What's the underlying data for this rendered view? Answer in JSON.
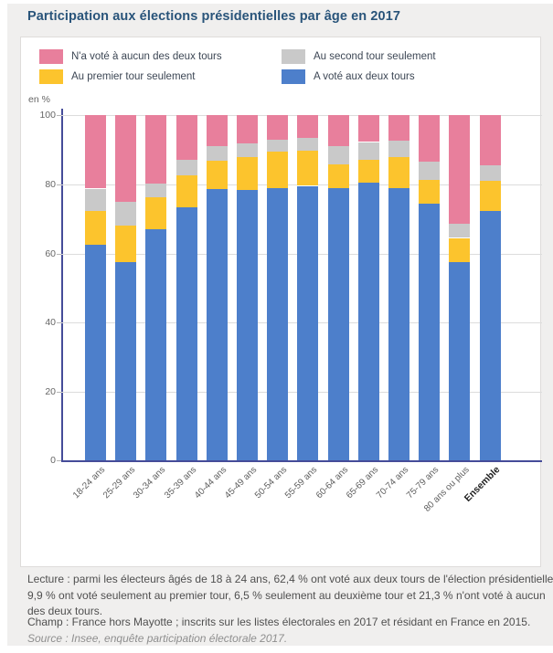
{
  "page": {
    "title": "Participation aux élections présidentielles par âge en 2017"
  },
  "legend": {
    "items": [
      {
        "label": "N'a voté à aucun des deux tours",
        "color": "#e87f9c"
      },
      {
        "label": "Au premier tour seulement",
        "color": "#fcc42d"
      },
      {
        "label": "Au second tour seulement",
        "color": "#c9c9c9"
      },
      {
        "label": "A voté aux deux tours",
        "color": "#4d7fcb"
      }
    ]
  },
  "chart_data": {
    "type": "bar",
    "stacked": true,
    "title": "Participation aux élections présidentielles par âge en 2017",
    "unit_label": "en %",
    "xlabel": "",
    "ylabel": "en %",
    "ylim": [
      0,
      100
    ],
    "yticks": [
      0,
      20,
      40,
      60,
      80,
      100
    ],
    "grid": true,
    "legend_position": "top",
    "categories": [
      "18-24 ans",
      "25-29 ans",
      "30-34 ans",
      "35-39 ans",
      "40-44 ans",
      "45-49 ans",
      "50-54 ans",
      "55-59 ans",
      "60-64 ans",
      "65-69 ans",
      "70-74 ans",
      "75-79 ans",
      "80 ans ou plus",
      "Ensemble"
    ],
    "highlight_category": "Ensemble",
    "series": [
      {
        "name": "A voté aux deux tours",
        "color": "#4d7fcb",
        "values": [
          62.4,
          57.5,
          67.0,
          73.4,
          78.6,
          78.3,
          78.9,
          79.6,
          79.0,
          80.4,
          78.9,
          74.4,
          57.4,
          72.2
        ]
      },
      {
        "name": "Au premier tour seulement",
        "color": "#fcc42d",
        "values": [
          9.9,
          10.5,
          9.2,
          9.2,
          8.2,
          9.6,
          10.6,
          10.3,
          6.9,
          6.8,
          9.0,
          6.9,
          7.1,
          8.9
        ]
      },
      {
        "name": "Au second tour seulement",
        "color": "#c9c9c9",
        "values": [
          6.5,
          7.0,
          4.0,
          4.5,
          4.2,
          3.9,
          3.5,
          3.5,
          5.3,
          5.1,
          4.9,
          5.3,
          4.2,
          4.4
        ]
      },
      {
        "name": "N'a voté à aucun des deux tours",
        "color": "#e87f9c",
        "values": [
          21.3,
          25.0,
          19.8,
          12.9,
          9.0,
          8.2,
          7.0,
          6.6,
          8.8,
          7.7,
          7.2,
          13.4,
          31.3,
          14.5
        ]
      }
    ]
  },
  "footer": {
    "lecture_lines": [
      "Lecture : parmi les électeurs âgés de 18 à 24 ans, 62,4 % ont voté aux deux tours de l'élection présidentielle",
      "9,9 % ont voté seulement au premier tour, 6,5 % seulement au deuxième tour et 21,3 % n'ont voté à aucun",
      "des deux tours."
    ],
    "champ": "Champ : France hors Mayotte ; inscrits sur les listes électorales en 2017 et résidant en France en 2015.",
    "source": "Source : Insee, enquête participation électorale 2017."
  }
}
